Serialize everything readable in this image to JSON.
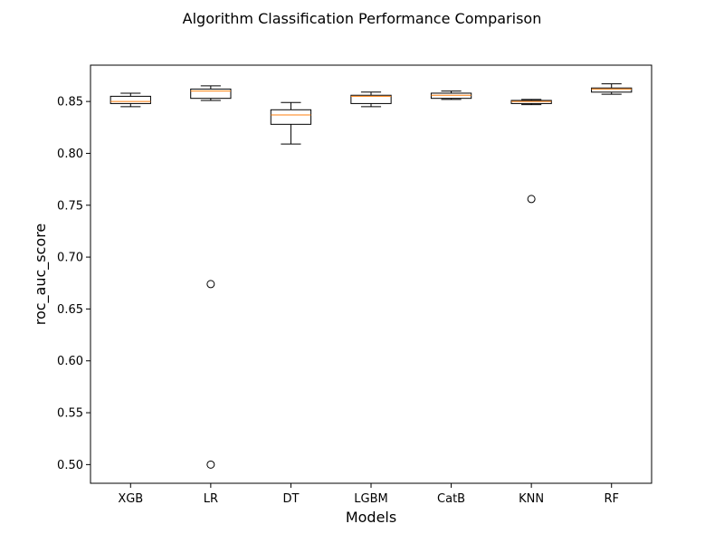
{
  "chart_data": {
    "type": "boxplot",
    "title": "Algorithm Classification Performance Comparison",
    "xlabel": "Models",
    "ylabel": "roc_auc_score",
    "ylim": [
      0.482,
      0.885
    ],
    "yticks": [
      "0.50",
      "0.55",
      "0.60",
      "0.65",
      "0.70",
      "0.75",
      "0.80",
      "0.85"
    ],
    "grid": false,
    "categories": [
      "XGB",
      "LR",
      "DT",
      "LGBM",
      "CatB",
      "KNN",
      "RF"
    ],
    "boxes": [
      {
        "name": "XGB",
        "whisker_low": 0.845,
        "q1": 0.848,
        "median": 0.85,
        "q3": 0.855,
        "whisker_high": 0.858,
        "outliers": []
      },
      {
        "name": "LR",
        "whisker_low": 0.851,
        "q1": 0.853,
        "median": 0.86,
        "q3": 0.862,
        "whisker_high": 0.865,
        "outliers": [
          0.674,
          0.5
        ]
      },
      {
        "name": "DT",
        "whisker_low": 0.809,
        "q1": 0.828,
        "median": 0.837,
        "q3": 0.842,
        "whisker_high": 0.849,
        "outliers": []
      },
      {
        "name": "LGBM",
        "whisker_low": 0.845,
        "q1": 0.848,
        "median": 0.855,
        "q3": 0.856,
        "whisker_high": 0.859,
        "outliers": []
      },
      {
        "name": "CatB",
        "whisker_low": 0.852,
        "q1": 0.853,
        "median": 0.856,
        "q3": 0.858,
        "whisker_high": 0.86,
        "outliers": []
      },
      {
        "name": "KNN",
        "whisker_low": 0.847,
        "q1": 0.848,
        "median": 0.85,
        "q3": 0.851,
        "whisker_high": 0.852,
        "outliers": [
          0.756
        ]
      },
      {
        "name": "RF",
        "whisker_low": 0.857,
        "q1": 0.859,
        "median": 0.862,
        "q3": 0.863,
        "whisker_high": 0.867,
        "outliers": []
      }
    ],
    "colors": {
      "box": "#000000",
      "median": "#ff7f0e",
      "outlier": "#000000",
      "axes": "#000000"
    }
  }
}
